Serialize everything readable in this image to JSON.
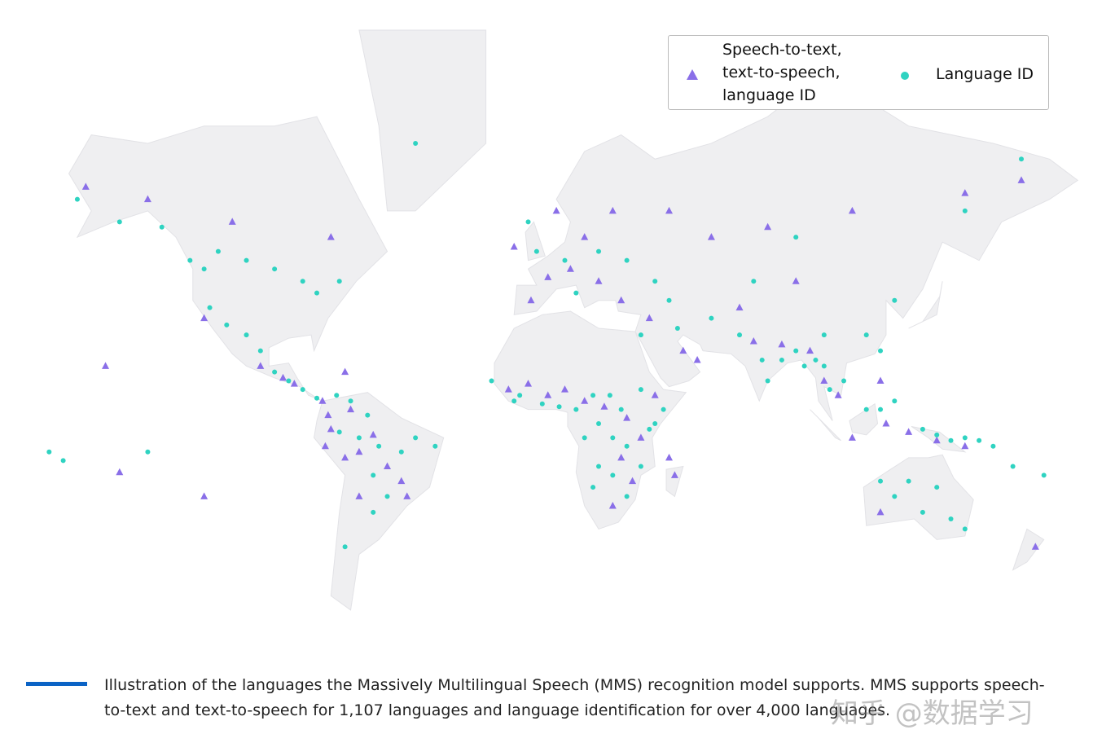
{
  "chart_data": {
    "type": "map-scatter",
    "series": [
      {
        "name": "Speech-to-text, text-to-speech, language ID",
        "color": "#8a6fe8",
        "marker": "triangle",
        "lon": [
          -162,
          -140,
          -110,
          -75,
          -120,
          -100,
          -92,
          -88,
          -78,
          -76,
          -75,
          -77,
          -70,
          -65,
          -60,
          -55,
          -50,
          -65,
          -48,
          -68,
          -120,
          -150,
          -155,
          -12,
          -5,
          2,
          8,
          15,
          22,
          30,
          35,
          28,
          32,
          25,
          47,
          45,
          40,
          50,
          38,
          28,
          20,
          10,
          2,
          -4,
          15,
          25,
          45,
          60,
          80,
          110,
          150,
          170,
          90,
          70,
          75,
          85,
          95,
          100,
          105,
          120,
          122,
          110,
          130,
          140,
          150,
          175,
          55,
          5,
          -10,
          -70,
          120
        ],
        "lat": [
          64,
          62,
          58,
          55,
          35,
          20,
          16,
          14,
          8,
          3,
          -2,
          -8,
          -12,
          -10,
          -4,
          -15,
          -20,
          -25,
          -25,
          5,
          -25,
          -17,
          20,
          12,
          14,
          10,
          12,
          8,
          6,
          2,
          -5,
          -12,
          -20,
          -28,
          -18,
          -12,
          10,
          25,
          35,
          40,
          45,
          48,
          46,
          40,
          55,
          60,
          60,
          55,
          57,
          60,
          63,
          65,
          45,
          38,
          28,
          27,
          25,
          15,
          10,
          15,
          0,
          -5,
          -3,
          -6,
          -8,
          -40,
          22,
          60,
          53,
          18,
          -30
        ]
      },
      {
        "name": "Language ID",
        "color": "#2fd3c1",
        "marker": "circle",
        "lon": [
          -165,
          -150,
          -135,
          -125,
          -120,
          -115,
          -105,
          -95,
          -85,
          -80,
          -72,
          -118,
          -112,
          -105,
          -100,
          -95,
          -90,
          -85,
          -80,
          -73,
          -68,
          -62,
          -72,
          -65,
          -58,
          -50,
          -45,
          -38,
          -60,
          -55,
          -60,
          -70,
          -170,
          -175,
          -140,
          -18,
          -8,
          0,
          6,
          12,
          18,
          24,
          28,
          20,
          15,
          25,
          30,
          20,
          25,
          18,
          30,
          35,
          38,
          43,
          35,
          45,
          40,
          30,
          20,
          8,
          -2,
          -5,
          12,
          35,
          48,
          60,
          70,
          78,
          80,
          85,
          90,
          93,
          97,
          100,
          102,
          107,
          115,
          120,
          125,
          100,
          115,
          120,
          125,
          135,
          140,
          145,
          150,
          155,
          160,
          167,
          178,
          120,
          125,
          130,
          140,
          135,
          145,
          150,
          -10,
          40,
          150,
          170,
          -45,
          90,
          75
        ],
        "lat": [
          62,
          58,
          57,
          50,
          48,
          52,
          50,
          48,
          45,
          42,
          45,
          38,
          33,
          30,
          25,
          18,
          15,
          12,
          9,
          10,
          8,
          3,
          -3,
          -5,
          -8,
          -10,
          -5,
          -8,
          -18,
          -25,
          -30,
          -40,
          -13,
          -10,
          -10,
          15,
          10,
          7,
          6,
          5,
          10,
          10,
          5,
          0,
          -5,
          -5,
          -8,
          -15,
          -18,
          -22,
          -25,
          -15,
          -2,
          5,
          12,
          40,
          45,
          50,
          52,
          50,
          52,
          58,
          42,
          30,
          32,
          35,
          30,
          22,
          15,
          22,
          25,
          20,
          22,
          20,
          12,
          15,
          30,
          25,
          40,
          30,
          5,
          5,
          8,
          -2,
          -4,
          -6,
          -5,
          -6,
          -8,
          -15,
          -18,
          -20,
          -25,
          -20,
          -22,
          -30,
          -32,
          -35,
          8,
          0,
          60,
          68,
          70,
          55,
          45
        ]
      }
    ],
    "caption": "Illustration of the languages the Massively Multilingual Speech (MMS) recognition model supports. MMS supports speech-to-text and text-to-speech for 1,107 languages and language identification for over 4,000 languages.",
    "watermark": "知乎 @数据学习"
  }
}
